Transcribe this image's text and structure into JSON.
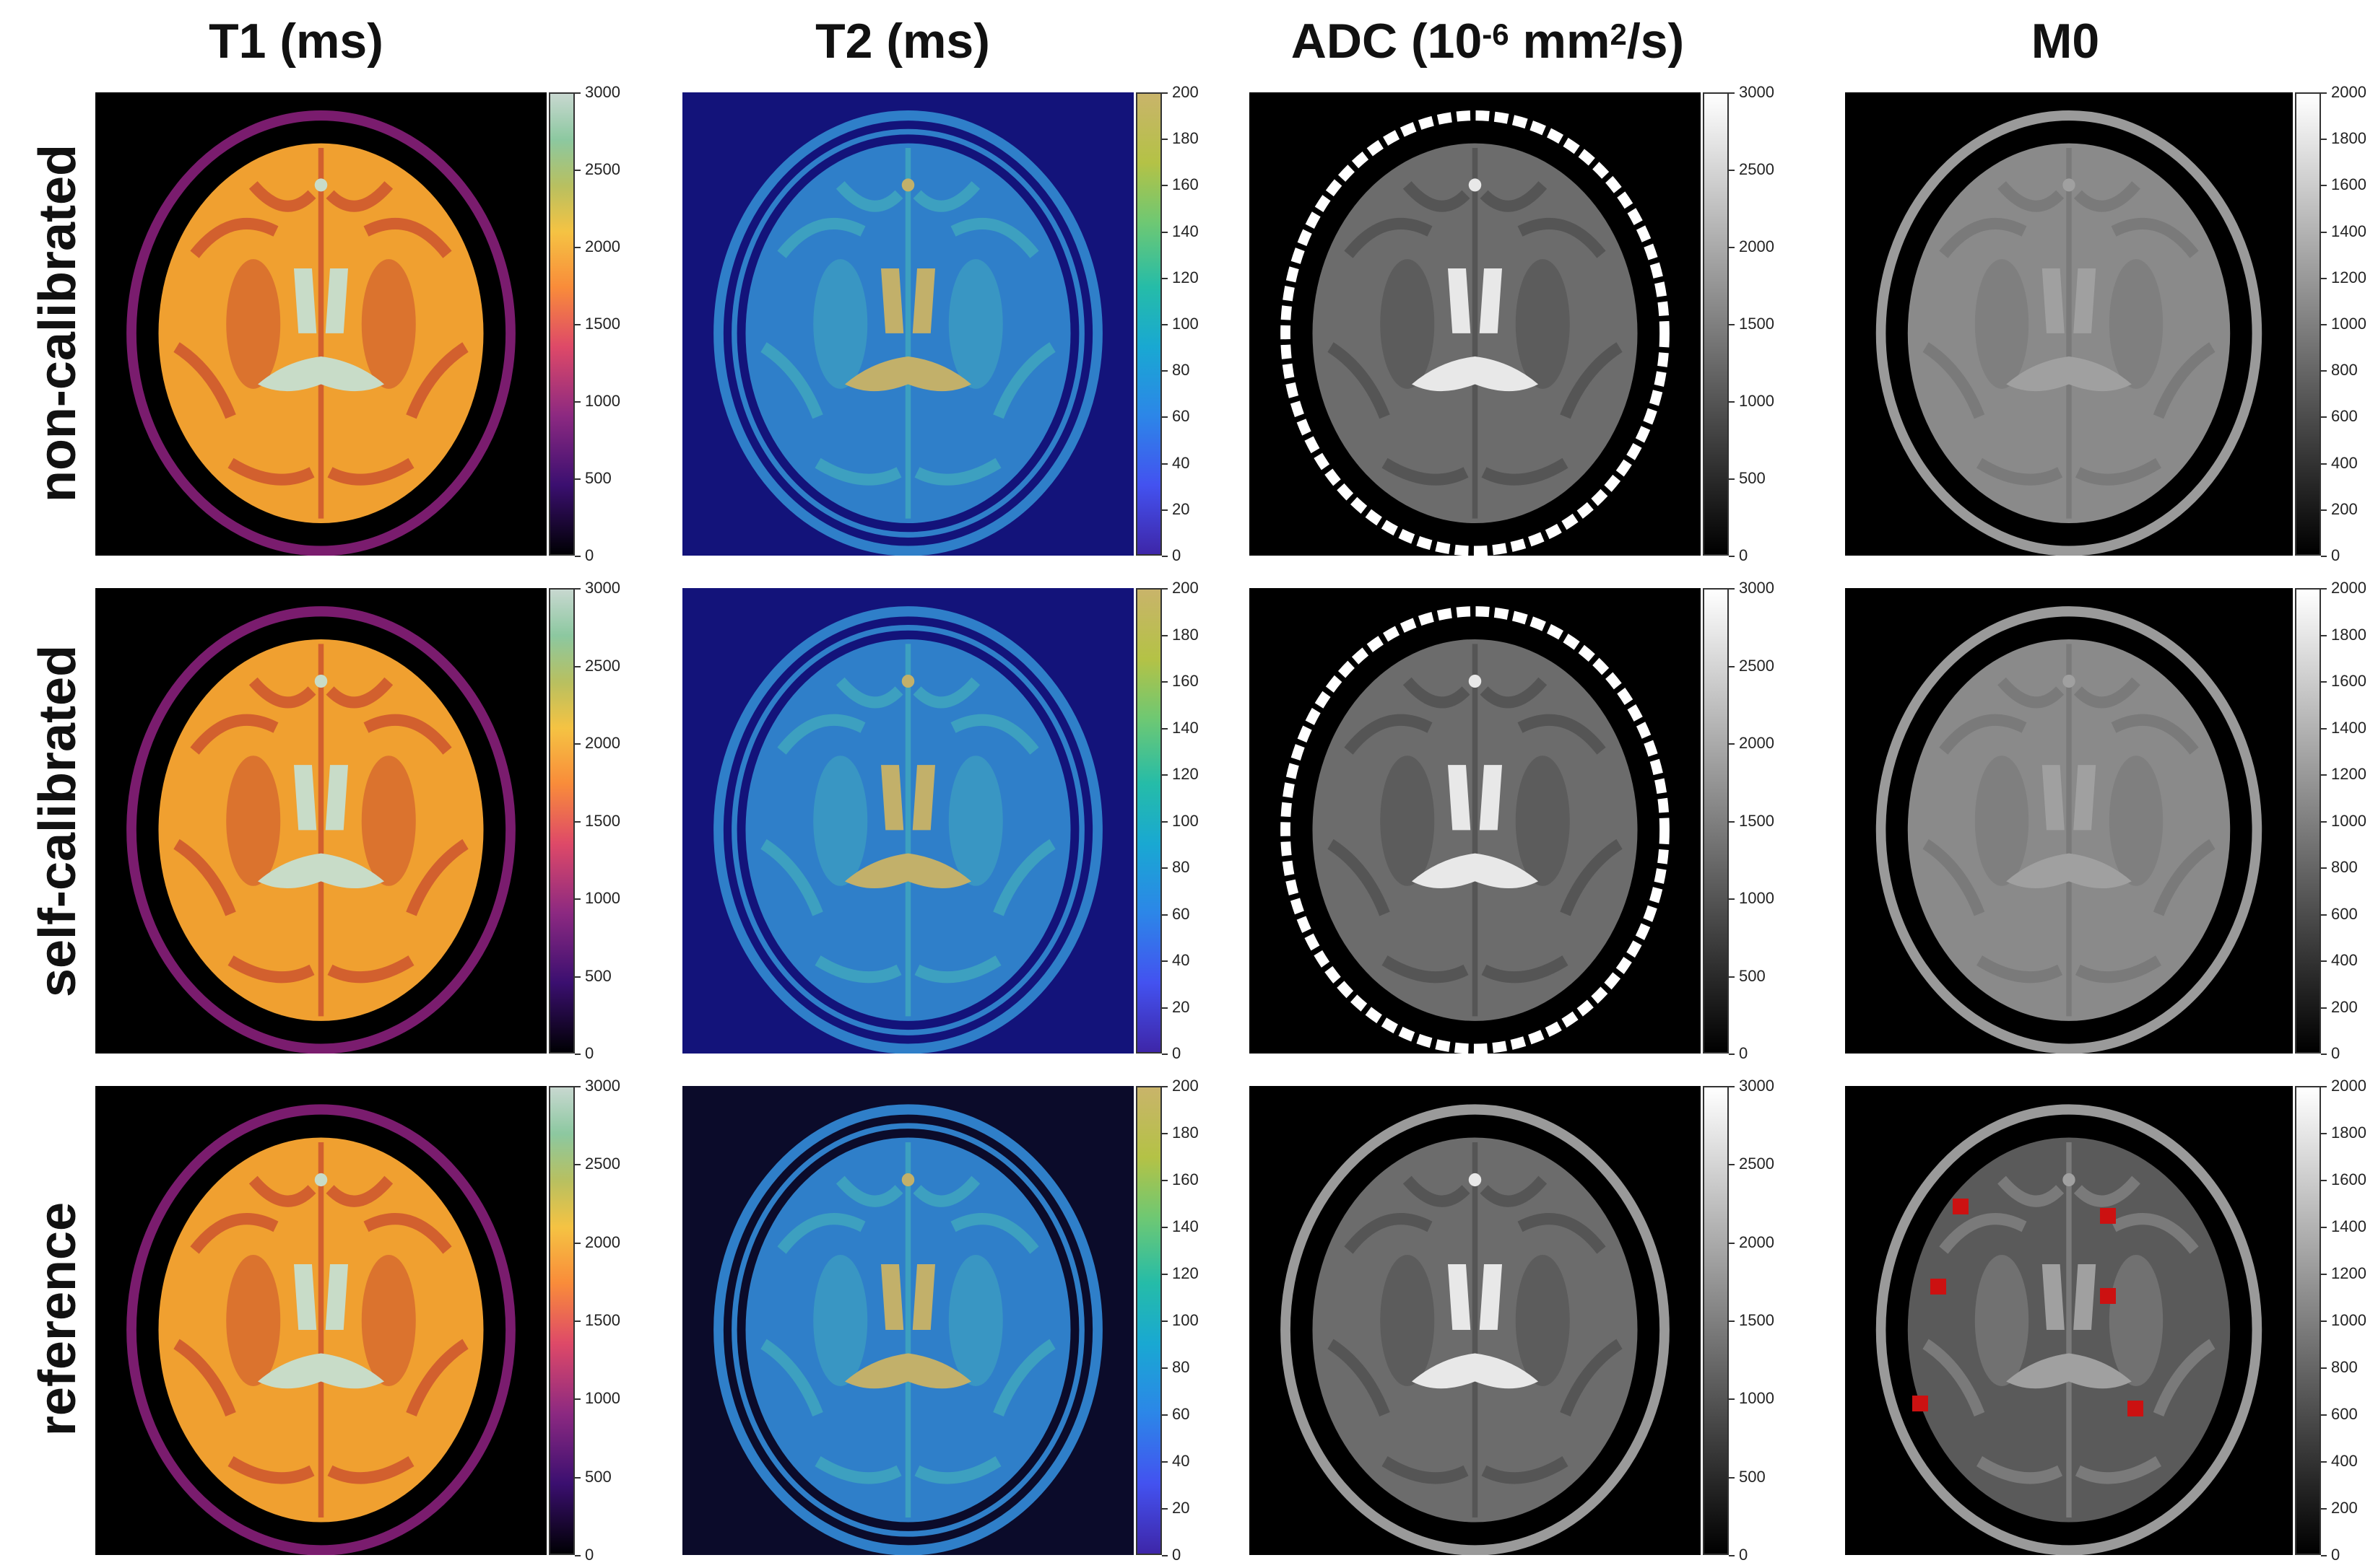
{
  "columns": [
    {
      "key": "t1",
      "title": "T1 (ms)",
      "cmap": "magma-like",
      "max": 3000,
      "ticks": [
        "3000",
        "2500",
        "2000",
        "1500",
        "1000",
        "500",
        "0"
      ]
    },
    {
      "key": "t2",
      "title": "T2 (ms)",
      "cmap": "parula-like",
      "max": 200,
      "ticks": [
        "200",
        "180",
        "160",
        "140",
        "120",
        "100",
        "80",
        "60",
        "40",
        "20",
        "0"
      ]
    },
    {
      "key": "adc",
      "title_pre": "ADC (10",
      "title_sup": "-6",
      "title_mid": " mm",
      "title_sup2": "2",
      "title_post": "/s)",
      "cmap": "gray",
      "max": 3000,
      "ticks": [
        "3000",
        "2500",
        "2000",
        "1500",
        "1000",
        "500",
        "0"
      ]
    },
    {
      "key": "m0",
      "title": "M0",
      "cmap": "gray",
      "max": 2000,
      "ticks": [
        "2000",
        "1800",
        "1600",
        "1400",
        "1200",
        "1000",
        "800",
        "600",
        "400",
        "200",
        "0"
      ]
    }
  ],
  "rows": [
    {
      "key": "non",
      "label": "non-calibrated"
    },
    {
      "key": "self",
      "label": "self-calibrated"
    },
    {
      "key": "ref",
      "label": "reference"
    }
  ],
  "colors": {
    "t1_bg": "#000000",
    "t1_outer": "#7a1c6e",
    "t1_wm": "#d2602e",
    "t1_gm": "#f0a030",
    "t1_csf": "#c8dcc8",
    "t2_bg_calib": "#13137a",
    "t2_bg_ref": "#0b0b2a",
    "t2_tissue": "#2f7fc9",
    "t2_gm": "#3da0c0",
    "t2_csf": "#c2b06a",
    "adc_tissue": "#6c6c6c",
    "adc_csf": "#e8e8e8",
    "m0_tissue": "#8a8a8a",
    "m0_ref_tissue": "#5a5a5a",
    "roi": "#cc1111"
  }
}
